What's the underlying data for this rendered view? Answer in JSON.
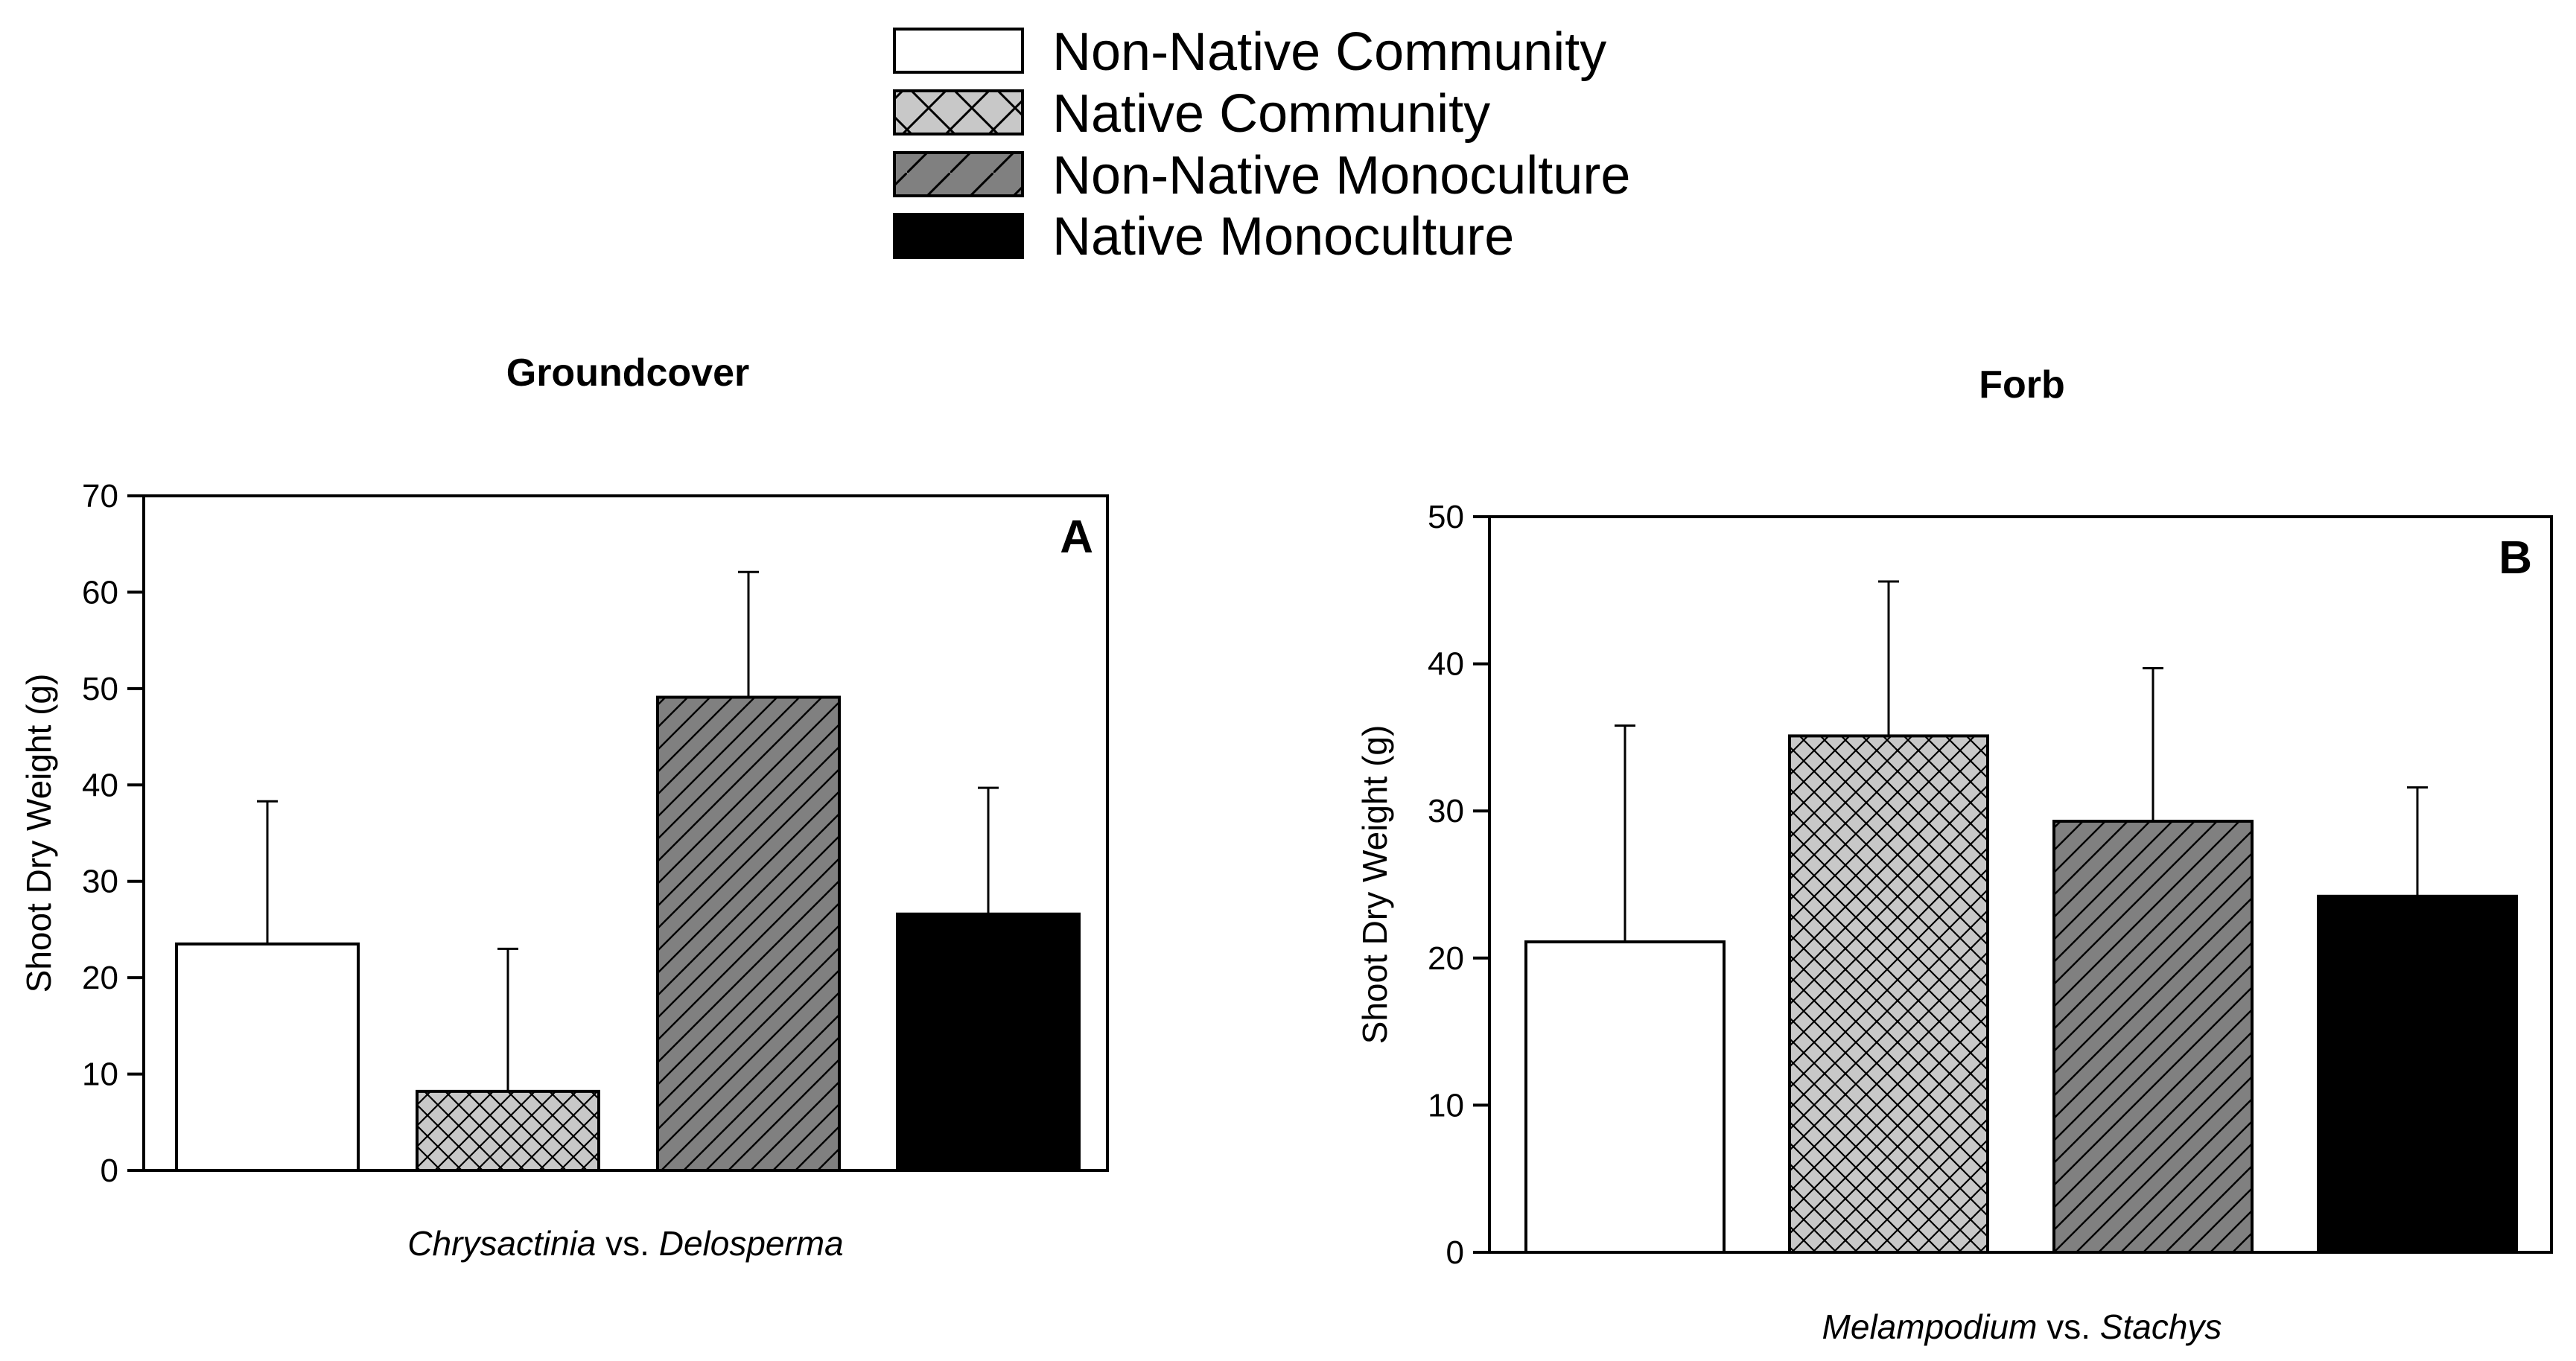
{
  "legend": {
    "items": [
      {
        "label": "Non-Native Community",
        "style": "white"
      },
      {
        "label": "Native Community",
        "style": "crosshatch"
      },
      {
        "label": "Non-Native Monoculture",
        "style": "diagonal"
      },
      {
        "label": "Native Monoculture",
        "style": "black"
      }
    ]
  },
  "colors": {
    "white": "#ffffff",
    "crosshatch_bg": "#c8c8c8",
    "diagonal_bg": "#808080",
    "black": "#000000"
  },
  "chart_data": [
    {
      "type": "bar",
      "title": "Groundcover",
      "panel": "A",
      "ylabel": "Shoot Dry Weight (g)",
      "xlabel_parts": [
        {
          "text": "Chrysactinia",
          "italic": true
        },
        {
          "text": " vs. ",
          "italic": false
        },
        {
          "text": "Delosperma",
          "italic": true
        }
      ],
      "ylim": [
        0,
        70
      ],
      "yticks": [
        0,
        10,
        20,
        30,
        40,
        50,
        60,
        70
      ],
      "categories": [
        "Non-Native Community",
        "Native Community",
        "Non-Native Monoculture",
        "Native Monoculture"
      ],
      "values": [
        23.5,
        8.2,
        49.1,
        26.6
      ],
      "errors": [
        14.8,
        14.8,
        13.0,
        13.1
      ]
    },
    {
      "type": "bar",
      "title": "Forb",
      "panel": "B",
      "ylabel": "Shoot Dry Weight (g)",
      "xlabel_parts": [
        {
          "text": "Melampodium",
          "italic": true
        },
        {
          "text": " vs. ",
          "italic": false
        },
        {
          "text": "Stachys",
          "italic": true
        }
      ],
      "ylim": [
        0,
        50
      ],
      "yticks": [
        0,
        10,
        20,
        30,
        40,
        50
      ],
      "categories": [
        "Non-Native Community",
        "Native Community",
        "Non-Native Monoculture",
        "Native Monoculture"
      ],
      "values": [
        21.1,
        35.1,
        29.3,
        24.2
      ],
      "errors": [
        14.7,
        10.5,
        10.4,
        7.4
      ]
    }
  ]
}
